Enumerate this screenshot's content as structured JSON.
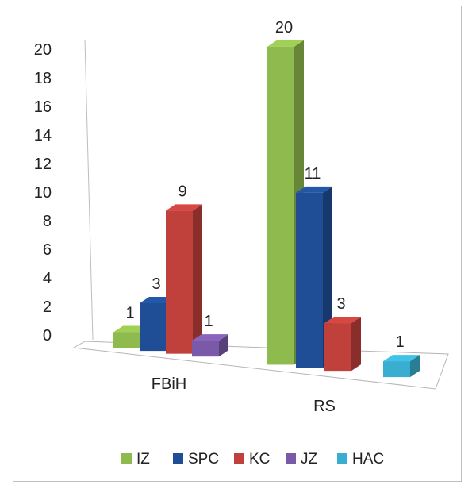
{
  "chart_data": {
    "type": "bar",
    "categories": [
      "FBiH",
      "RS"
    ],
    "series": [
      {
        "name": "IZ",
        "values": [
          1,
          20
        ],
        "color": "#8fba4d"
      },
      {
        "name": "SPC",
        "values": [
          3,
          11
        ],
        "color": "#1f4e96"
      },
      {
        "name": "KC",
        "values": [
          9,
          3
        ],
        "color": "#c0403c"
      },
      {
        "name": "JZ",
        "values": [
          1,
          null
        ],
        "color": "#7a5aa8"
      },
      {
        "name": "HAC",
        "values": [
          null,
          1
        ],
        "color": "#3aaed0"
      }
    ],
    "title": "",
    "xlabel": "",
    "ylabel": "",
    "ylim": [
      0,
      20
    ],
    "yticks": [
      0,
      2,
      4,
      6,
      8,
      10,
      12,
      14,
      16,
      18,
      20
    ],
    "grid": false,
    "legend": "bottom",
    "style": "3d-clustered-column"
  }
}
